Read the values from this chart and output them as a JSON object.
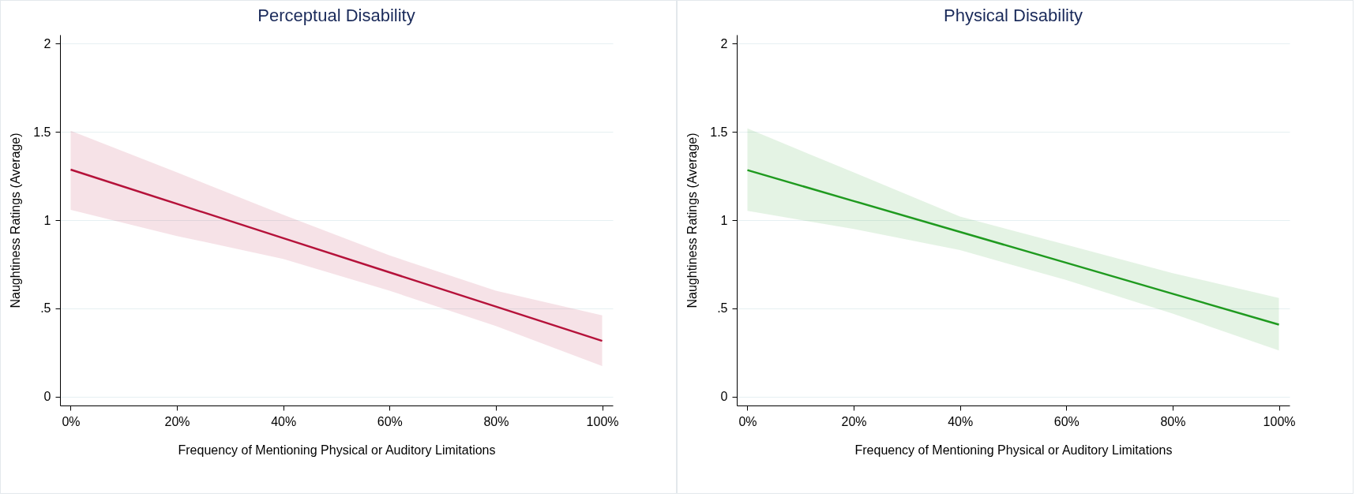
{
  "chart_data": [
    {
      "type": "line",
      "title": "Perceptual Disability",
      "xlabel": "Frequency of Mentioning Physical or Auditory Limitations",
      "ylabel": "Naughtiness Ratings (Average)",
      "x": [
        0,
        20,
        40,
        60,
        80,
        100
      ],
      "series": [
        {
          "color": "#b5123a",
          "values": [
            1.286,
            1.092,
            0.898,
            0.704,
            0.51,
            0.316
          ],
          "lower": [
            1.058,
            0.91,
            0.78,
            0.6,
            0.4,
            0.173
          ],
          "upper": [
            1.506,
            1.27,
            1.03,
            0.8,
            0.6,
            0.46
          ]
        }
      ],
      "xlim": [
        -2,
        102
      ],
      "xticks": [
        {
          "value": 0,
          "label": "0%"
        },
        {
          "value": 20,
          "label": "20%"
        },
        {
          "value": 40,
          "label": "40%"
        },
        {
          "value": 60,
          "label": "60%"
        },
        {
          "value": 80,
          "label": "80%"
        },
        {
          "value": 100,
          "label": "100%"
        }
      ],
      "ylim": [
        -0.05,
        2.05
      ],
      "yticks": [
        0,
        {
          "value": 0.5,
          "label": ".5"
        },
        1,
        1.5,
        2
      ],
      "grid": "y",
      "marker": "none",
      "line_style": "solid"
    },
    {
      "type": "line",
      "title": "Physical Disability",
      "xlabel": "Frequency of Mentioning Physical or Auditory Limitations",
      "ylabel": "Naughtiness Ratings (Average)",
      "x": [
        0,
        20,
        40,
        60,
        80,
        100
      ],
      "series": [
        {
          "color": "#1f9a1f",
          "values": [
            1.283,
            1.108,
            0.933,
            0.758,
            0.583,
            0.408
          ],
          "lower": [
            1.052,
            0.95,
            0.83,
            0.66,
            0.47,
            0.262
          ],
          "upper": [
            1.519,
            1.27,
            1.02,
            0.86,
            0.7,
            0.559
          ]
        }
      ],
      "xlim": [
        -2,
        102
      ],
      "xticks": [
        {
          "value": 0,
          "label": "0%"
        },
        {
          "value": 20,
          "label": "20%"
        },
        {
          "value": 40,
          "label": "40%"
        },
        {
          "value": 60,
          "label": "60%"
        },
        {
          "value": 80,
          "label": "80%"
        },
        {
          "value": 100,
          "label": "100%"
        }
      ],
      "ylim": [
        -0.05,
        2.05
      ],
      "yticks": [
        0,
        {
          "value": 0.5,
          "label": ".5"
        },
        1,
        1.5,
        2
      ],
      "grid": "y",
      "marker": "none",
      "line_style": "solid"
    }
  ]
}
